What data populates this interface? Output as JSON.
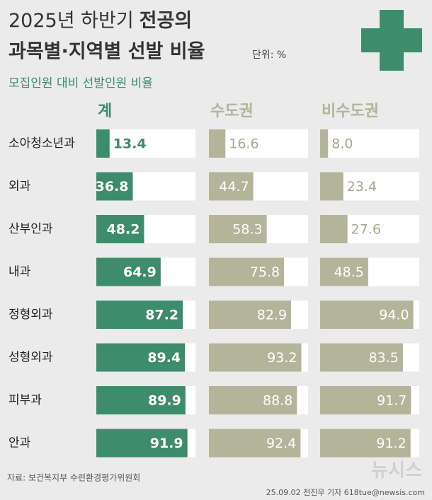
{
  "chart_data": {
    "type": "bar",
    "title": "2025년 하반기",
    "title_bold_1": "전공의",
    "title_bold_2": "과목별·지역별 선발 비율",
    "unit": "단위: %",
    "subtitle": "모집인원 대비 선발인원 비율",
    "categories": [
      "소아청소년과",
      "외과",
      "산부인과",
      "내과",
      "정형외과",
      "성형외과",
      "피부과",
      "안과"
    ],
    "series": [
      {
        "name": "계",
        "color": "#3d8c6c",
        "values": [
          13.4,
          36.8,
          48.2,
          64.9,
          87.2,
          89.4,
          89.9,
          91.9
        ],
        "value_labels": [
          "13.4",
          "36.8",
          "48.2",
          "64.9",
          "87.2",
          "89.4",
          "89.9",
          "91.9"
        ]
      },
      {
        "name": "수도권",
        "color": "#b3b49a",
        "values": [
          16.6,
          44.7,
          58.3,
          75.8,
          82.9,
          93.2,
          88.8,
          92.4
        ],
        "value_labels": [
          "16.6",
          "44.7",
          "58.3",
          "75.8",
          "82.9",
          "93.2",
          "88.8",
          "92.4"
        ]
      },
      {
        "name": "비수도권",
        "color": "#b3b49a",
        "values": [
          8.0,
          23.4,
          27.6,
          48.5,
          94.0,
          83.5,
          91.7,
          91.2
        ],
        "value_labels": [
          "8.0",
          "23.4",
          "27.6",
          "48.5",
          "94.0",
          "83.5",
          "91.7",
          "91.2"
        ]
      }
    ],
    "xlim": [
      0,
      100
    ],
    "source": "자료: 보건복지부 수련환경평가위원회",
    "logo": "뉴시스",
    "credit": "25.09.02 전진우 기자 618tue@newsis.com"
  }
}
